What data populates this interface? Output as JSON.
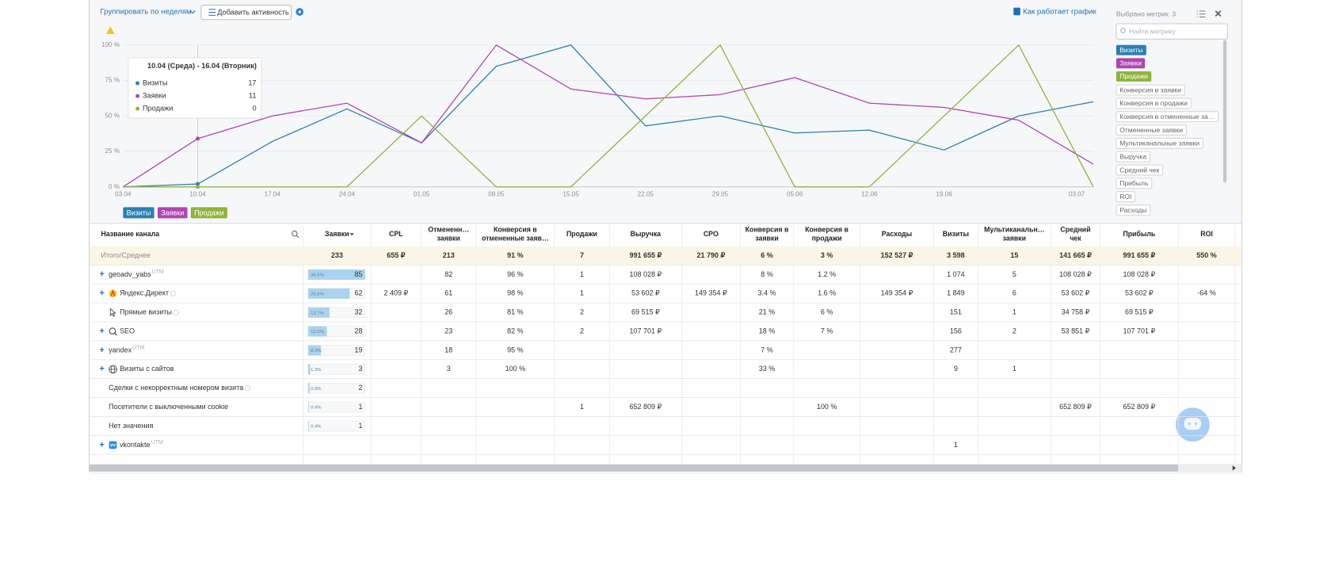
{
  "toolbar": {
    "group_by": "Группировать по неделям",
    "add_activity": "Добавить активность",
    "help": "Как работает график"
  },
  "chart": {
    "type": "line",
    "x": [
      "03.04",
      "10.04",
      "17.04",
      "24.04",
      "01.05",
      "08.05",
      "15.05",
      "22.05",
      "29.05",
      "05.06",
      "12.06",
      "19.06",
      null,
      "03.07"
    ],
    "ylim": [
      0,
      100
    ],
    "yticks": [
      {
        "value": 0,
        "label": "0 %"
      },
      {
        "value": 25,
        "label": "25 %"
      },
      {
        "value": 50,
        "label": "50 %"
      },
      {
        "value": 75,
        "label": "75 %"
      },
      {
        "value": 100,
        "label": "100 %"
      }
    ],
    "grid": true,
    "series": [
      {
        "name": "Визиты",
        "color": "#2a80b0",
        "values": [
          0,
          2,
          32,
          55,
          31,
          85,
          100,
          43,
          50,
          38,
          40,
          26,
          50,
          60
        ]
      },
      {
        "name": "Заявки",
        "color": "#b044b2",
        "values": [
          0,
          34,
          50,
          59,
          31,
          100,
          69,
          62,
          65,
          77,
          59,
          56,
          47,
          16
        ]
      },
      {
        "name": "Продажи",
        "color": "#8fb43a",
        "values": [
          0,
          0,
          0,
          0,
          50,
          0,
          0,
          50,
          100,
          0,
          0,
          50,
          100,
          0
        ]
      }
    ]
  },
  "tooltip": {
    "title": "10.04 (Среда) - 16.04 (Вторник)",
    "values": [
      17,
      11,
      0
    ]
  },
  "metrics_panel": {
    "selected_label": "Выбрано метрик: 3",
    "search_placeholder": "Найти метрику",
    "available": [
      "Конверсия в заявки",
      "Конверсия в продажи",
      "Конверсия в отмененные за…",
      "Отмененные заявки",
      "Мультиканальные заявки",
      "Выручка",
      "Средний чек",
      "Прибыль",
      "ROI",
      "Расходы"
    ]
  },
  "table": {
    "columns": [
      [
        "Название канала"
      ],
      [
        "Заявки"
      ],
      [
        "CPL"
      ],
      [
        "Отмененн…",
        "заявки"
      ],
      [
        "Конверсия в",
        "отмененные заяв…"
      ],
      [
        "Продажи"
      ],
      [
        "Выручка"
      ],
      [
        "CPO"
      ],
      [
        "Конверсия в",
        "заявки"
      ],
      [
        "Конверсия в",
        "продажи"
      ],
      [
        "Расходы"
      ],
      [
        "Визиты"
      ],
      [
        "Мультиканальн…",
        "заявки"
      ],
      [
        "Средний",
        "чек"
      ],
      [
        "Прибыль"
      ],
      [
        "ROI"
      ]
    ],
    "totals": {
      "label": "Итого/Среднее",
      "cells": [
        233,
        "655 ₽",
        213,
        "91 %",
        7,
        "991 655 ₽",
        "21 790 ₽",
        "6 %",
        "3 %",
        "152 527 ₽",
        "3 598",
        15,
        "141 665 ₽",
        "991 655 ₽",
        "550 %"
      ]
    },
    "rows": [
      {
        "name": "geoadv_yabs",
        "tag": "UTM",
        "expandable": true,
        "icon": null,
        "help": false,
        "share": 36.5,
        "share_label": "36.5%",
        "claims": 85,
        "cells": [
          null,
          82,
          "96 %",
          1,
          "108 028 ₽",
          null,
          "8 %",
          "1.2 %",
          null,
          "1 074",
          5,
          "108 028 ₽",
          "108 028 ₽",
          null
        ]
      },
      {
        "name": "Яндекс.Директ",
        "tag": null,
        "expandable": true,
        "icon": "yandex",
        "help": true,
        "share": 26.6,
        "share_label": "26.6%",
        "claims": 62,
        "cells": [
          "2 409 ₽",
          61,
          "98 %",
          1,
          "53 602 ₽",
          "149 354 ₽",
          "3.4 %",
          "1.6 %",
          "149 354 ₽",
          "1 849",
          6,
          "53 602 ₽",
          "53 602 ₽",
          "-64 %"
        ]
      },
      {
        "name": "Прямые визиты",
        "tag": null,
        "expandable": false,
        "icon": "cursor",
        "help": true,
        "share": 13.7,
        "share_label": "13.7%",
        "claims": 32,
        "cells": [
          null,
          26,
          "81 %",
          2,
          "69 515 ₽",
          null,
          "21 %",
          "6 %",
          null,
          151,
          1,
          "34 758 ₽",
          "69 515 ₽",
          null
        ]
      },
      {
        "name": "SEO",
        "tag": null,
        "expandable": true,
        "icon": "search",
        "help": false,
        "share": 12.0,
        "share_label": "12.0%",
        "claims": 28,
        "cells": [
          null,
          23,
          "82 %",
          2,
          "107 701 ₽",
          null,
          "18 %",
          "7 %",
          null,
          156,
          2,
          "53 851 ₽",
          "107 701 ₽",
          null
        ]
      },
      {
        "name": "yandex",
        "tag": "UTM",
        "expandable": true,
        "icon": null,
        "help": false,
        "share": 8.2,
        "share_label": "8.2%",
        "claims": 19,
        "cells": [
          null,
          18,
          "95 %",
          null,
          null,
          null,
          "7 %",
          null,
          null,
          277,
          null,
          null,
          null,
          null
        ]
      },
      {
        "name": "Визиты с сайтов",
        "tag": null,
        "expandable": true,
        "icon": "globe",
        "help": false,
        "share": 1.3,
        "share_label": "1.3%",
        "claims": 3,
        "cells": [
          null,
          3,
          "100 %",
          null,
          null,
          null,
          "33 %",
          null,
          null,
          9,
          1,
          null,
          null,
          null
        ]
      },
      {
        "name": "Сделки с некорректным номером визита",
        "tag": null,
        "expandable": false,
        "icon": null,
        "help": true,
        "share": 0.9,
        "share_label": "0.9%",
        "claims": 2,
        "cells": [
          null,
          null,
          null,
          null,
          null,
          null,
          null,
          null,
          null,
          null,
          null,
          null,
          null,
          null
        ]
      },
      {
        "name": "Посетители с выключенными cookie",
        "tag": null,
        "expandable": false,
        "icon": null,
        "help": false,
        "share": 0.4,
        "share_label": "0.4%",
        "claims": 1,
        "cells": [
          null,
          null,
          null,
          1,
          "652 809 ₽",
          null,
          null,
          "100 %",
          null,
          null,
          null,
          "652 809 ₽",
          "652 809 ₽",
          null
        ]
      },
      {
        "name": "Нет значения",
        "tag": null,
        "expandable": false,
        "icon": null,
        "help": false,
        "share": 0.4,
        "share_label": "0.4%",
        "claims": 1,
        "cells": [
          null,
          null,
          null,
          null,
          null,
          null,
          null,
          null,
          null,
          null,
          null,
          null,
          null,
          null
        ]
      },
      {
        "name": "vkontakte",
        "tag": "UTM",
        "expandable": true,
        "icon": "vk",
        "help": false,
        "share": null,
        "share_label": null,
        "claims": null,
        "cells": [
          null,
          null,
          null,
          null,
          null,
          null,
          null,
          null,
          null,
          1,
          null,
          null,
          null,
          null
        ]
      }
    ]
  }
}
